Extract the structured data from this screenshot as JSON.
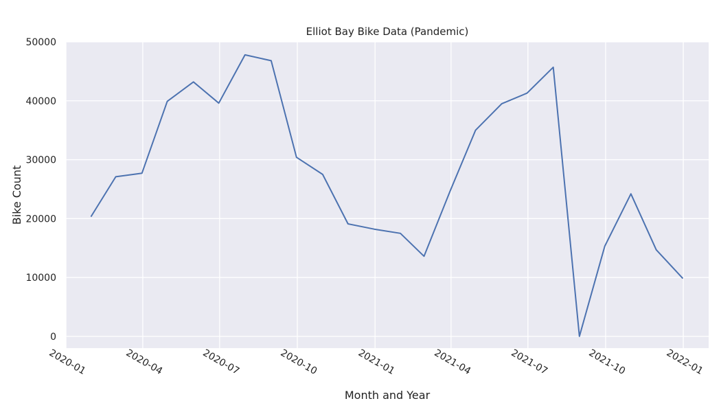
{
  "chart_data": {
    "type": "line",
    "title": "Elliot Bay Bike Data (Pandemic)",
    "xlabel": "Month and Year",
    "ylabel": "Bike Count",
    "x_axis_type": "date",
    "xlim": [
      "2020-01-01",
      "2022-01-31"
    ],
    "ylim": [
      -2000,
      50000
    ],
    "x_ticks": [
      "2020-01",
      "2020-04",
      "2020-07",
      "2020-10",
      "2021-01",
      "2021-04",
      "2021-07",
      "2021-10",
      "2022-01"
    ],
    "y_ticks": [
      0,
      10000,
      20000,
      30000,
      40000,
      50000
    ],
    "x_tick_rotation": -30,
    "grid": true,
    "legend": "none",
    "series": [
      {
        "color": "#4c72b0",
        "x": [
          "2020-01-31",
          "2020-02-29",
          "2020-03-31",
          "2020-04-30",
          "2020-05-31",
          "2020-06-30",
          "2020-07-31",
          "2020-08-31",
          "2020-09-30",
          "2020-10-31",
          "2020-11-30",
          "2020-12-31",
          "2021-01-31",
          "2021-02-28",
          "2021-03-31",
          "2021-04-30",
          "2021-05-31",
          "2021-06-30",
          "2021-07-31",
          "2021-08-31",
          "2021-09-30",
          "2021-10-31",
          "2021-11-30",
          "2021-12-31"
        ],
        "values": [
          20400,
          27100,
          27700,
          39900,
          43200,
          39600,
          47800,
          46800,
          30400,
          27500,
          19100,
          18200,
          17500,
          13600,
          24700,
          35000,
          39500,
          41300,
          45700,
          0,
          15300,
          24200,
          14700,
          9900
        ]
      }
    ]
  }
}
